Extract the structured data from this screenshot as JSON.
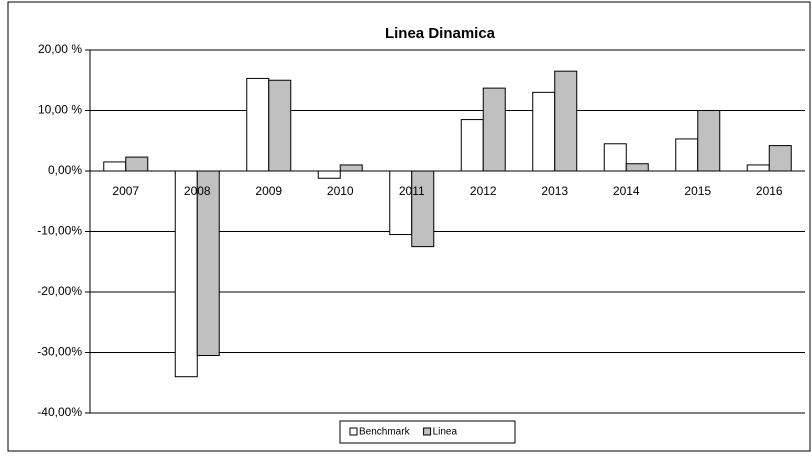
{
  "chart_data": {
    "type": "bar",
    "title": "Linea Dinamica",
    "categories": [
      "2007",
      "2008",
      "2009",
      "2010",
      "2011",
      "2012",
      "2013",
      "2014",
      "2015",
      "2016"
    ],
    "series": [
      {
        "name": "Benchmark",
        "color": "#ffffff",
        "values": [
          1.5,
          -34,
          15.3,
          -1.2,
          -10.5,
          8.5,
          13,
          4.5,
          5.3,
          1
        ]
      },
      {
        "name": "Linea",
        "color": "#c0c0c0",
        "values": [
          2.3,
          -30.5,
          15,
          1.0,
          -12.5,
          13.7,
          16.5,
          1.2,
          10,
          4.2
        ]
      }
    ],
    "ylim": [
      -40,
      20
    ],
    "yticks": [
      {
        "value": -40,
        "label": "-40,00%"
      },
      {
        "value": -30,
        "label": "-30,00%"
      },
      {
        "value": -20,
        "label": "-20,00%"
      },
      {
        "value": -10,
        "label": "-10,00%"
      },
      {
        "value": 0,
        "label": "0,00%"
      },
      {
        "value": 10,
        "label": "10,00 %"
      },
      {
        "value": 20,
        "label": "20,00 %"
      }
    ],
    "grid": true,
    "legend": "bottom"
  }
}
